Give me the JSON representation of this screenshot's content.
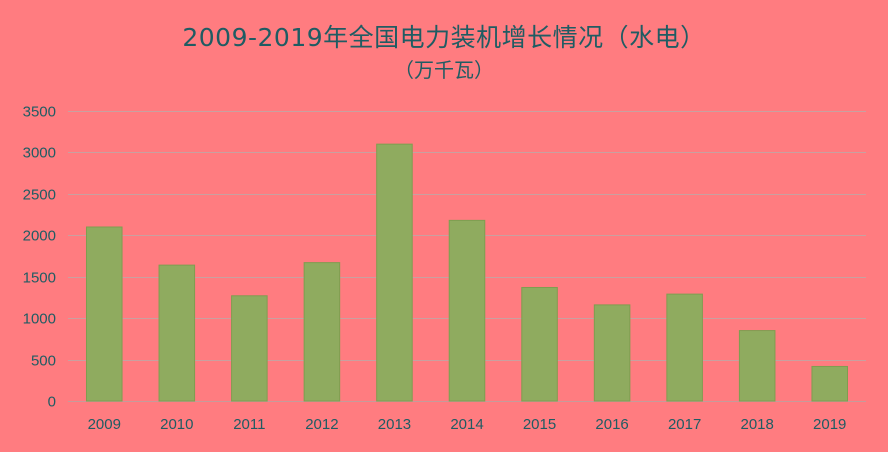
{
  "chart_data": {
    "type": "bar",
    "title": "2009-2019年全国电力装机增长情况（水电）",
    "subtitle": "（万千瓦）",
    "xlabel": "",
    "ylabel": "",
    "categories": [
      "2009",
      "2010",
      "2011",
      "2012",
      "2013",
      "2014",
      "2015",
      "2016",
      "2017",
      "2018",
      "2019"
    ],
    "values": [
      2100,
      1640,
      1270,
      1670,
      3100,
      2180,
      1370,
      1160,
      1290,
      850,
      417
    ],
    "ylim": [
      0,
      3500
    ],
    "yticks": [
      0,
      500,
      1000,
      1500,
      2000,
      2500,
      3000,
      3500
    ],
    "grid": true,
    "legend": "none",
    "colors": {
      "background": "#ff7c80",
      "bar": "#8fab5f",
      "bar_edge": "#7f9d50",
      "grid": "#c9a0a0",
      "text": "#1f5c63"
    }
  }
}
